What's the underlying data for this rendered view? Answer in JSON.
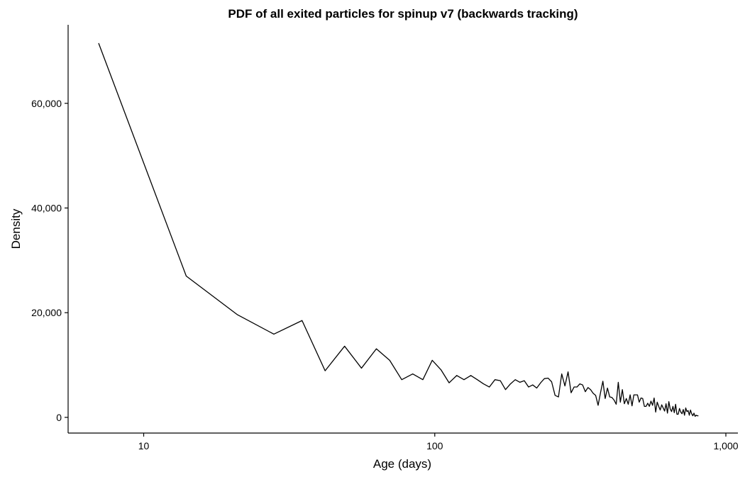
{
  "chart_data": {
    "type": "line",
    "title": "PDF of all exited particles for spinup v7 (backwards tracking)",
    "xlabel": "Age (days)",
    "ylabel": "Density",
    "x_scale": "log10",
    "xlim": [
      5.5,
      1100
    ],
    "ylim": [
      -3000,
      75000
    ],
    "x_ticks": [
      10,
      100,
      1000
    ],
    "x_tick_labels": [
      "10",
      "100",
      "1,000"
    ],
    "y_ticks": [
      0,
      20000,
      40000,
      60000
    ],
    "y_tick_labels": [
      "0",
      "20,000",
      "40,000",
      "60,000"
    ],
    "grid": false,
    "line_color": "#000000",
    "series": [
      {
        "x": [
          7,
          14,
          21,
          28,
          35,
          42,
          49,
          56,
          63,
          70,
          77,
          84,
          91,
          98,
          105,
          112,
          119,
          126,
          133,
          140,
          147,
          154,
          161,
          168,
          175,
          182,
          189,
          196,
          203,
          210,
          217,
          224,
          231,
          238,
          245,
          252,
          259,
          266,
          273,
          280,
          287,
          294,
          301,
          308,
          315,
          322,
          329,
          336,
          343,
          350,
          357,
          364,
          371,
          378,
          385,
          392,
          399,
          406,
          413,
          420,
          427,
          434,
          441,
          448,
          455,
          462,
          469,
          476,
          483,
          490,
          497,
          504,
          511,
          518,
          525,
          532,
          539,
          546,
          553,
          560,
          567,
          574,
          581,
          588,
          595,
          602,
          609,
          616,
          623,
          630,
          637,
          644,
          651,
          658,
          665,
          672,
          679,
          686,
          693,
          700,
          707,
          714,
          721,
          728,
          735,
          742,
          749,
          756,
          763,
          770,
          777,
          784,
          791,
          798,
          805
        ],
        "y": [
          71500,
          27000,
          19600,
          15900,
          18500,
          8900,
          13600,
          9400,
          13100,
          10900,
          7200,
          8300,
          7200,
          10900,
          9100,
          6600,
          8000,
          7200,
          8000,
          7200,
          6400,
          5800,
          7200,
          7000,
          5300,
          6400,
          7200,
          6700,
          7000,
          5800,
          6200,
          5600,
          6600,
          7400,
          7500,
          6800,
          4200,
          3900,
          8300,
          6000,
          8700,
          4700,
          5800,
          5800,
          6400,
          6200,
          4900,
          5700,
          5300,
          4600,
          4200,
          2300,
          4700,
          6900,
          3600,
          5600,
          3900,
          3800,
          3300,
          2500,
          6700,
          2900,
          5300,
          2600,
          3600,
          2500,
          4300,
          2200,
          4300,
          4300,
          4300,
          2900,
          3700,
          3600,
          2100,
          2100,
          2700,
          2100,
          3100,
          2300,
          3700,
          1000,
          2900,
          2100,
          1400,
          2400,
          1800,
          1200,
          2600,
          800,
          3000,
          1600,
          1100,
          2100,
          900,
          2500,
          600,
          600,
          1700,
          1000,
          700,
          1500,
          400,
          1800,
          1100,
          1300,
          400,
          1400,
          700,
          300,
          800,
          200,
          400,
          300,
          300
        ]
      }
    ]
  }
}
